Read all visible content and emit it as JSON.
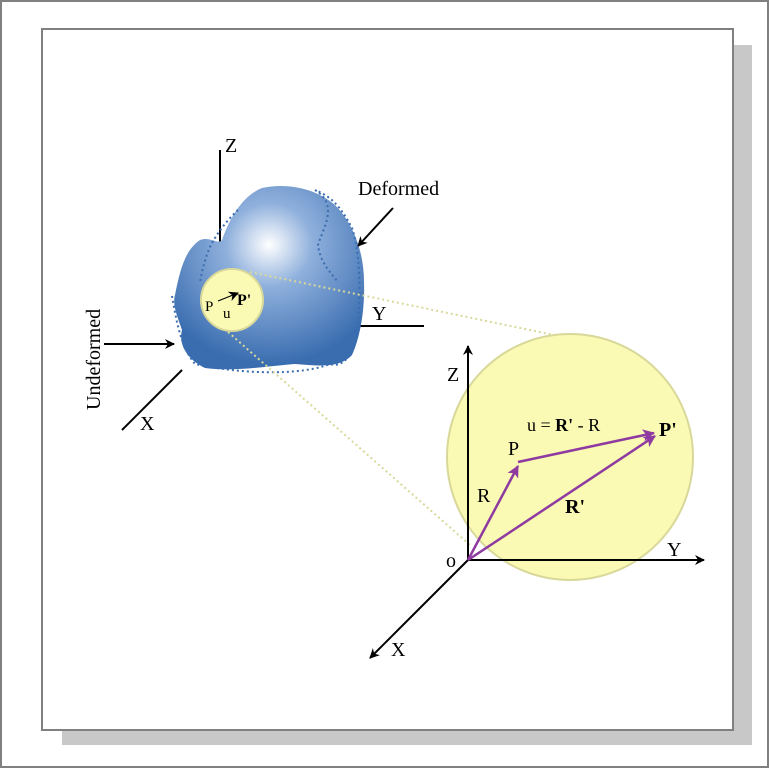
{
  "labels": {
    "z_small": "Z",
    "y_small": "Y",
    "x_small": "X",
    "deformed": "Deformed",
    "undeformed": "Undeformed",
    "p_small": "P",
    "u_small": "u",
    "pprime_small": "P'",
    "z_big": "Z",
    "y_big": "Y",
    "x_big": "X",
    "origin": "o",
    "p_big": "P",
    "pprime_big": "P'",
    "r_label": "R",
    "rprime_label": "R'",
    "equation_u": "u = ",
    "equation_rprime": "R'",
    "equation_rest": " - R"
  },
  "colors": {
    "body_fill": "#3a6db0",
    "highlight": "#ffffff",
    "magnifier_fill": "#fafab4",
    "magnifier_stroke": "#d8d89a",
    "vector": "#8e3aa0",
    "outline_dotted": "#3a6db0",
    "page_border": "#808080",
    "shadow": "#c8c8c8"
  }
}
